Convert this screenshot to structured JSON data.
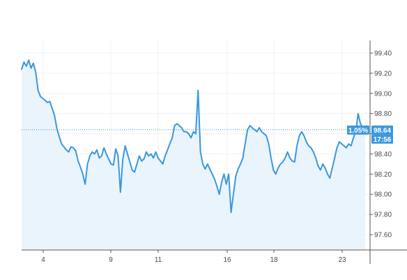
{
  "chart_data": {
    "type": "area",
    "title": "",
    "xlabel": "",
    "ylabel": "",
    "x_tick_labels": [
      "4",
      "9",
      "11",
      "16",
      "18",
      "23"
    ],
    "y_tick_labels": [
      "97.60",
      "97.80",
      "98.00",
      "98.20",
      "98.40",
      "98.60",
      "98.80",
      "99.00",
      "99.20",
      "99.40"
    ],
    "ylim": [
      97.44,
      99.52
    ],
    "grid": true,
    "legend": "none",
    "series": [
      {
        "values": [
          99.24,
          99.31,
          99.27,
          99.33,
          99.25,
          99.3,
          99.21,
          99.03,
          98.97,
          98.95,
          98.93,
          98.91,
          98.92,
          98.85,
          98.78,
          98.65,
          98.57,
          98.5,
          98.47,
          98.44,
          98.42,
          98.47,
          98.46,
          98.43,
          98.33,
          98.27,
          98.2,
          98.1,
          98.3,
          98.38,
          98.42,
          98.4,
          98.44,
          98.36,
          98.38,
          98.46,
          98.4,
          98.35,
          98.3,
          98.29,
          98.45,
          98.38,
          98.02,
          98.35,
          98.48,
          98.4,
          98.32,
          98.24,
          98.22,
          98.3,
          98.38,
          98.33,
          98.35,
          98.42,
          98.38,
          98.4,
          98.36,
          98.42,
          98.36,
          98.33,
          98.3,
          98.38,
          98.44,
          98.5,
          98.56,
          98.68,
          98.7,
          98.68,
          98.66,
          98.62,
          98.62,
          98.6,
          98.56,
          98.62,
          98.6,
          99.03,
          98.42,
          98.3,
          98.25,
          98.3,
          98.25,
          98.2,
          98.15,
          98.08,
          98.0,
          98.12,
          98.2,
          98.1,
          98.2,
          97.82,
          98.0,
          98.18,
          98.25,
          98.3,
          98.36,
          98.5,
          98.64,
          98.68,
          98.66,
          98.64,
          98.62,
          98.66,
          98.62,
          98.6,
          98.58,
          98.5,
          98.36,
          98.24,
          98.2,
          98.26,
          98.3,
          98.32,
          98.36,
          98.42,
          98.36,
          98.33,
          98.32,
          98.48,
          98.58,
          98.62,
          98.58,
          98.52,
          98.48,
          98.46,
          98.42,
          98.36,
          98.28,
          98.24,
          98.3,
          98.26,
          98.2,
          98.16,
          98.26,
          98.36,
          98.46,
          98.52,
          98.5,
          98.48,
          98.46,
          98.5,
          98.48,
          98.56,
          98.62,
          98.8,
          98.7,
          98.66,
          98.64
        ]
      }
    ],
    "last_price": "98.64",
    "change_pct": "1.05%",
    "countdown": "17:56",
    "colors": {
      "line": "#3b97dd",
      "area": "#eaf4fc",
      "grid": "#eef0f3",
      "price_line": "#3b97dd",
      "badge_bg": "#3b97dd",
      "axis_text": "#4a4a4a",
      "axis_line": "#555555"
    }
  }
}
